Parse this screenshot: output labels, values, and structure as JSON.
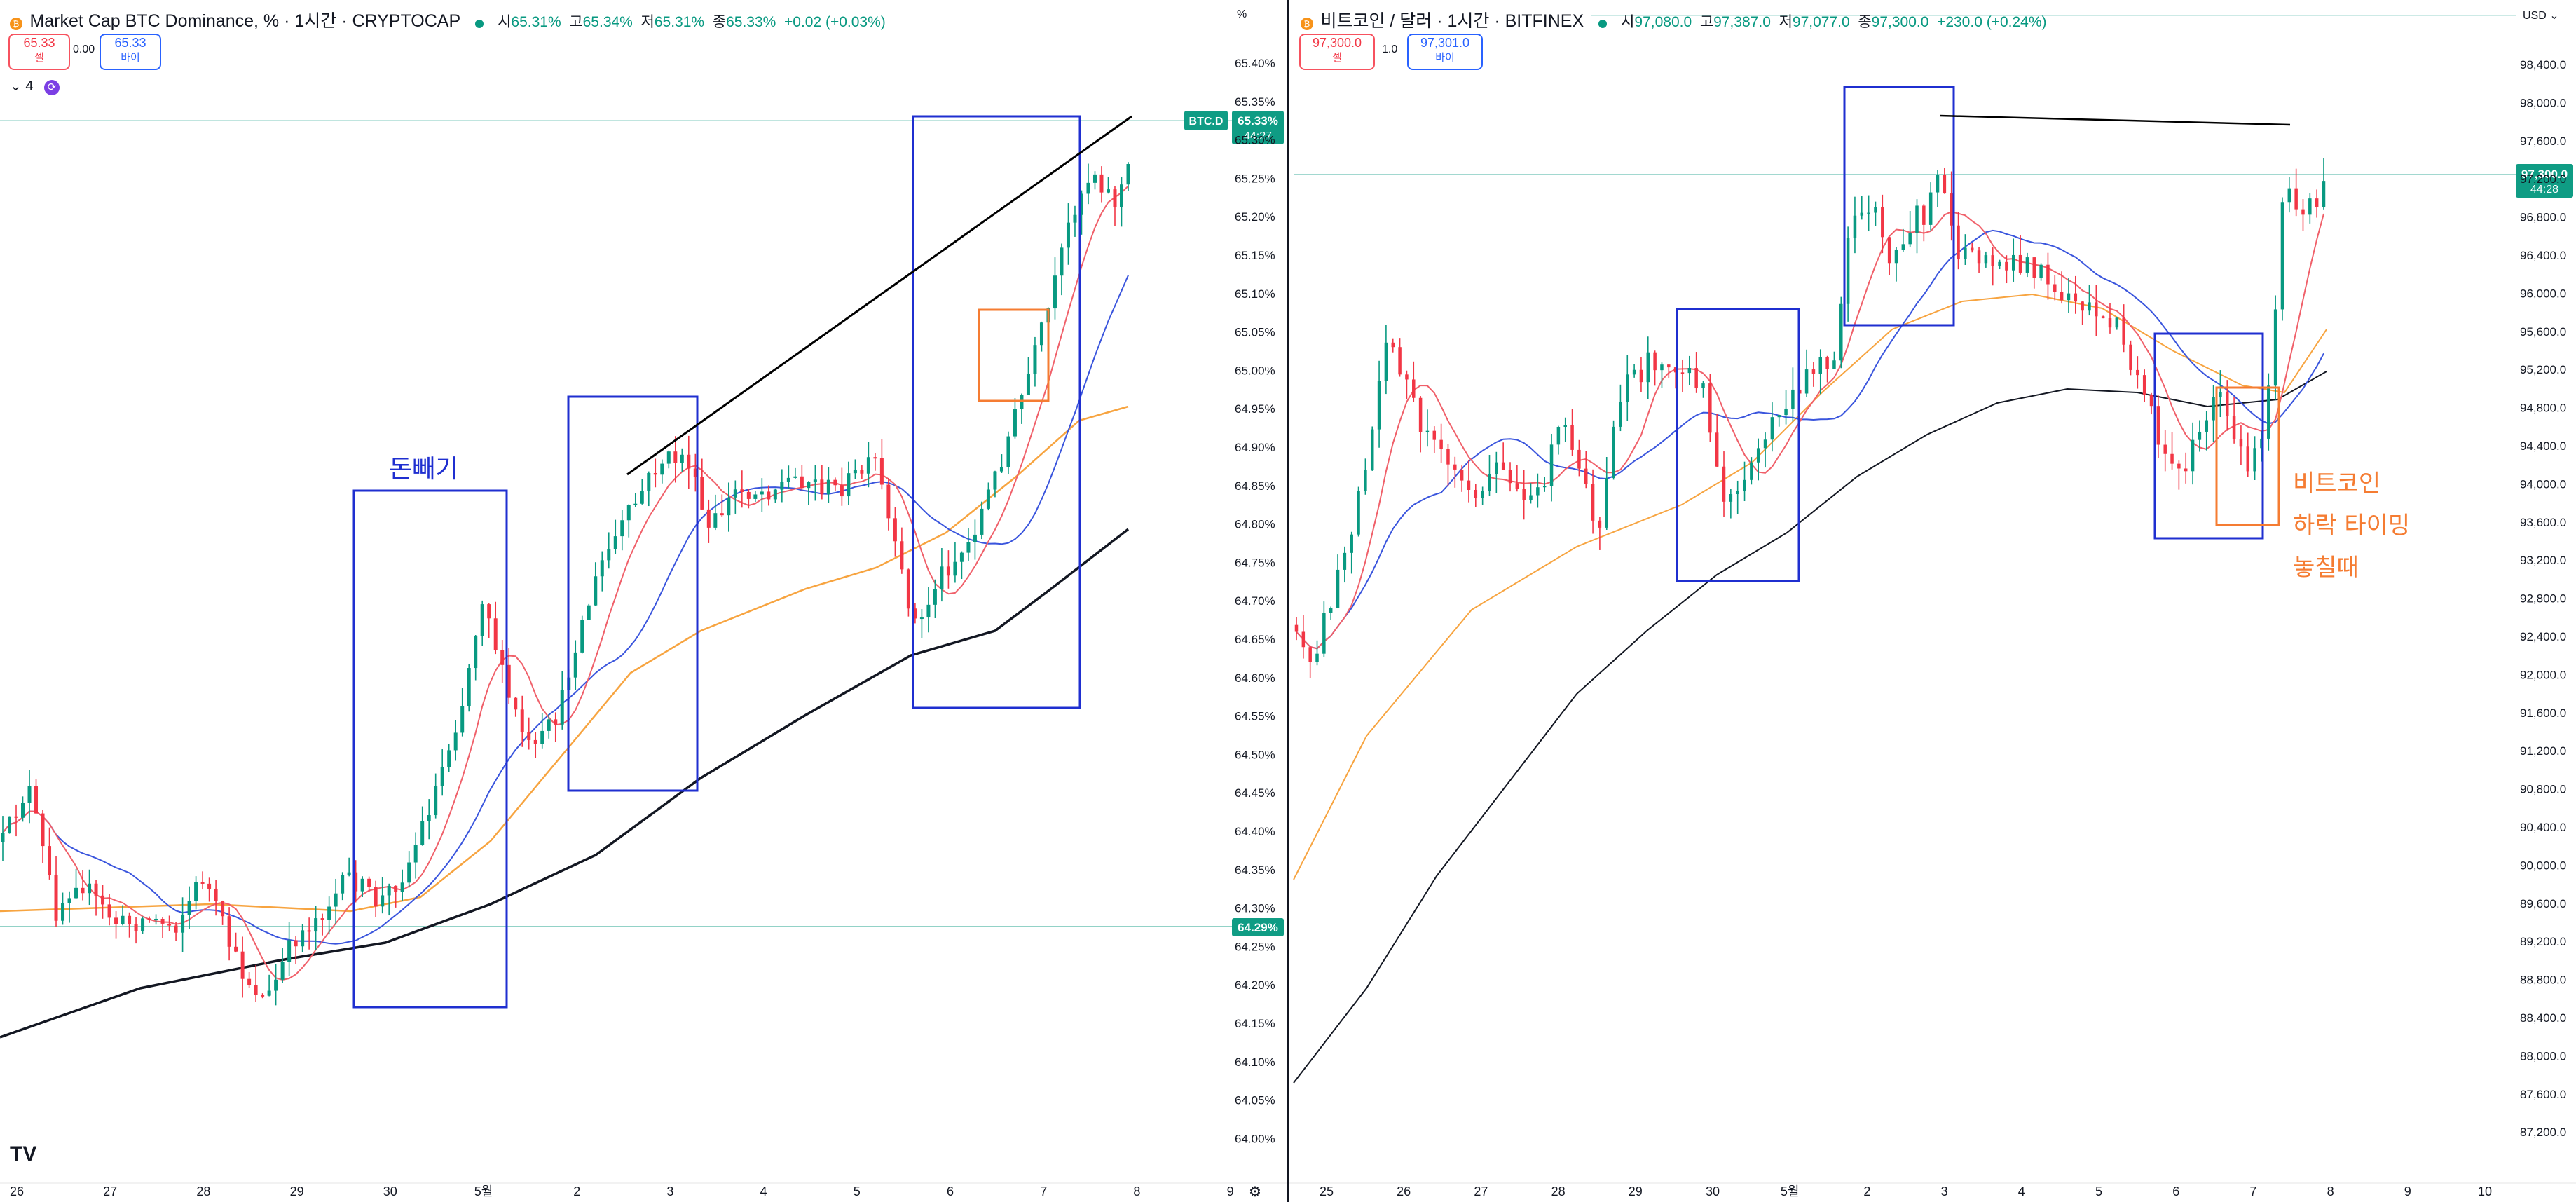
{
  "left": {
    "symbol_title": "Market Cap BTC Dominance, % · 1시간 · CRYPTOCAP",
    "ohlc": {
      "o_label": "시",
      "o": "65.31%",
      "h_label": "고",
      "h": "65.34%",
      "l_label": "저",
      "l": "65.31%",
      "c_label": "종",
      "c": "65.33%",
      "chg": "+0.02 (+0.03%)"
    },
    "sell": {
      "price": "65.33",
      "label": "셀"
    },
    "spread": "0.00",
    "buy": {
      "price": "65.33",
      "label": "바이"
    },
    "indicator_count": "4",
    "unit": "%",
    "price_ticks": [
      "65.40%",
      "65.35%",
      "65.30%",
      "65.25%",
      "65.20%",
      "65.15%",
      "65.10%",
      "65.05%",
      "65.00%",
      "64.95%",
      "64.90%",
      "64.85%",
      "64.80%",
      "64.75%",
      "64.70%",
      "64.65%",
      "64.60%",
      "64.55%",
      "64.50%",
      "64.45%",
      "64.40%",
      "64.35%",
      "64.30%",
      "64.25%",
      "64.20%",
      "64.15%",
      "64.10%",
      "64.05%",
      "64.00%"
    ],
    "date_ticks": [
      "26",
      "27",
      "28",
      "29",
      "30",
      "5월",
      "2",
      "3",
      "4",
      "5",
      "6",
      "7",
      "8",
      "9"
    ],
    "symbol_tag": "BTC.D",
    "last_price": "65.33%",
    "countdown": "44:27",
    "hline_price": "64.29%",
    "annotation": "돈빼기"
  },
  "right": {
    "symbol_title": "비트코인 / 달러 · 1시간 · BITFINEX",
    "ohlc": {
      "o_label": "시",
      "o": "97,080.0",
      "h_label": "고",
      "h": "97,387.0",
      "l_label": "저",
      "l": "97,077.0",
      "c_label": "종",
      "c": "97,300.0",
      "chg": "+230.0 (+0.24%)"
    },
    "sell": {
      "price": "97,300.0",
      "label": "셀"
    },
    "spread": "1.0",
    "buy": {
      "price": "97,301.0",
      "label": "바이"
    },
    "unit": "USD",
    "price_ticks": [
      "98,400.0",
      "98,000.0",
      "97,600.0",
      "97,200.0",
      "96,800.0",
      "96,400.0",
      "96,000.0",
      "95,600.0",
      "95,200.0",
      "94,800.0",
      "94,400.0",
      "94,000.0",
      "93,600.0",
      "93,200.0",
      "92,800.0",
      "92,400.0",
      "92,000.0",
      "91,600.0",
      "91,200.0",
      "90,800.0",
      "90,400.0",
      "90,000.0",
      "89,600.0",
      "89,200.0",
      "88,800.0",
      "88,400.0",
      "88,000.0",
      "87,600.0",
      "87,200.0"
    ],
    "date_ticks": [
      "25",
      "26",
      "27",
      "28",
      "29",
      "30",
      "5월",
      "2",
      "3",
      "4",
      "5",
      "6",
      "7",
      "8",
      "9",
      "10"
    ],
    "last_price": "97,300.0",
    "countdown": "44:28",
    "annotation_lines": [
      "비트코인",
      "하락 타이밍",
      "놓칠때"
    ]
  },
  "colors": {
    "up": "#089981",
    "down": "#f23645",
    "ma_red": "#f0606a",
    "ma_blue": "#3a55dd",
    "ma_orange": "#f7a440",
    "ma_black": "#131722",
    "box_blue": "#1f2fd0",
    "box_orange": "#f57c32",
    "grid": "#e6e6e6"
  },
  "icons": {
    "logo": "bitcoin-logo-icon",
    "sync": "sync-icon",
    "tradingview": "tradingview-logo-icon",
    "settings": "settings-icon",
    "collapse": "chevron-down-icon"
  }
}
